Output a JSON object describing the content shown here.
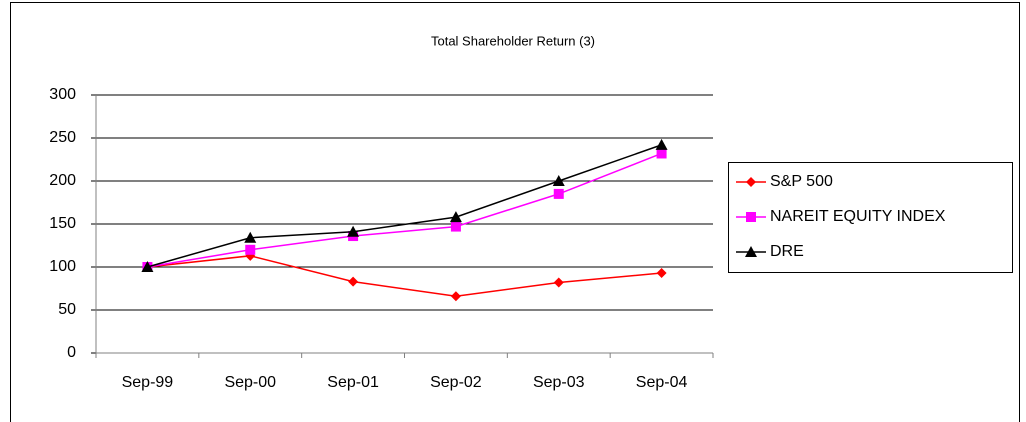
{
  "chart_data": {
    "type": "line",
    "title": "Total Shareholder Return (3)",
    "categories": [
      "Sep-99",
      "Sep-00",
      "Sep-01",
      "Sep-02",
      "Sep-03",
      "Sep-04"
    ],
    "series": [
      {
        "name": "S&P 500",
        "color": "#ff0000",
        "marker": "diamond",
        "values": [
          100,
          113,
          83,
          66,
          82,
          93
        ]
      },
      {
        "name": "NAREIT EQUITY INDEX",
        "color": "#ff00ff",
        "marker": "square",
        "values": [
          100,
          120,
          136,
          147,
          185,
          232
        ]
      },
      {
        "name": "DRE",
        "color": "#000000",
        "marker": "triangle",
        "values": [
          100,
          134,
          141,
          158,
          200,
          242
        ]
      }
    ],
    "ylim": [
      0,
      300
    ],
    "yticks": [
      0,
      50,
      100,
      150,
      200,
      250,
      300
    ],
    "grid": true,
    "legend": "right"
  }
}
